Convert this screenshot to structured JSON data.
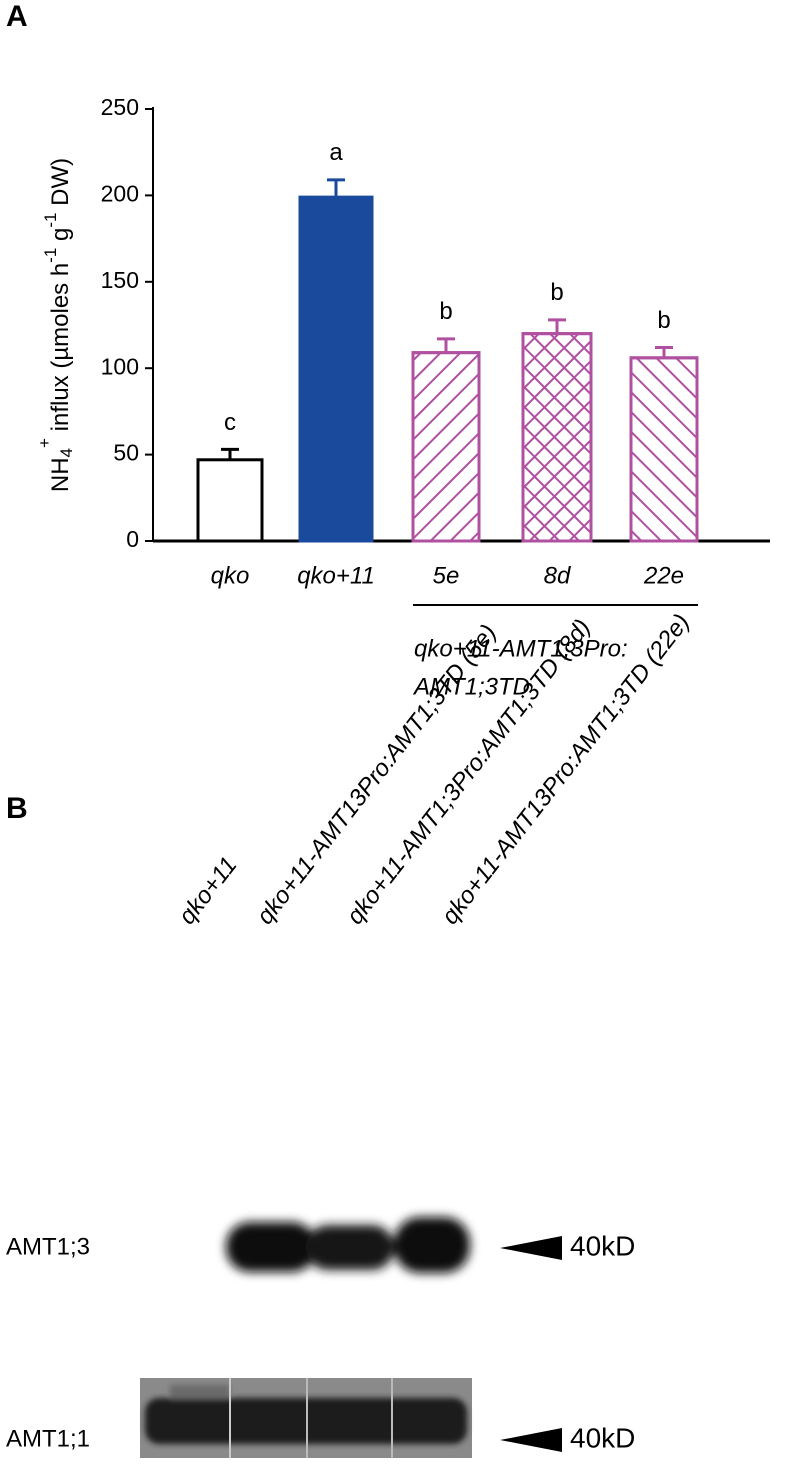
{
  "chart_data": {
    "type": "bar",
    "panel": "A",
    "ylabel": [
      "NH",
      "4",
      "+",
      " influx (µmoles h",
      "-1",
      " g",
      "-1",
      " DW)"
    ],
    "categories": [
      "qko",
      "qko+11",
      "5e",
      "8d",
      "22e"
    ],
    "values": [
      47,
      199,
      109,
      120,
      106
    ],
    "errors": [
      6,
      10,
      8,
      8,
      6
    ],
    "letters": [
      "c",
      "a",
      "b",
      "b",
      "b"
    ],
    "edge_colors": [
      "#000000",
      "#1a4a9c",
      "#b050a0",
      "#b050a0",
      "#b050a0"
    ],
    "fill_colors": [
      "#ffffff",
      "#1a4a9c",
      "#ffffff",
      "#ffffff",
      "#ffffff"
    ],
    "hatch": [
      "none",
      "none",
      "forward",
      "cross",
      "backward"
    ],
    "group_label": [
      "qko+11-AMT1;3Pro:",
      "AMT1;3TD"
    ],
    "ylim": [
      0,
      250
    ],
    "yticks": [
      0,
      50,
      100,
      150,
      200,
      250
    ]
  },
  "blot": {
    "panel": "B",
    "lanes": [
      "qko+11",
      "qko+11-AMT13Pro:AMT1;3TD (5e)",
      "qko+11-AMT1;3Pro:AMT1;3TD (8d)",
      "qko+11-AMT13Pro:AMT1;3TD (22e)"
    ],
    "rows": [
      {
        "label": "AMT1;3",
        "marker": "40kD"
      },
      {
        "label": "AMT1;1",
        "marker": "40kD"
      }
    ]
  }
}
